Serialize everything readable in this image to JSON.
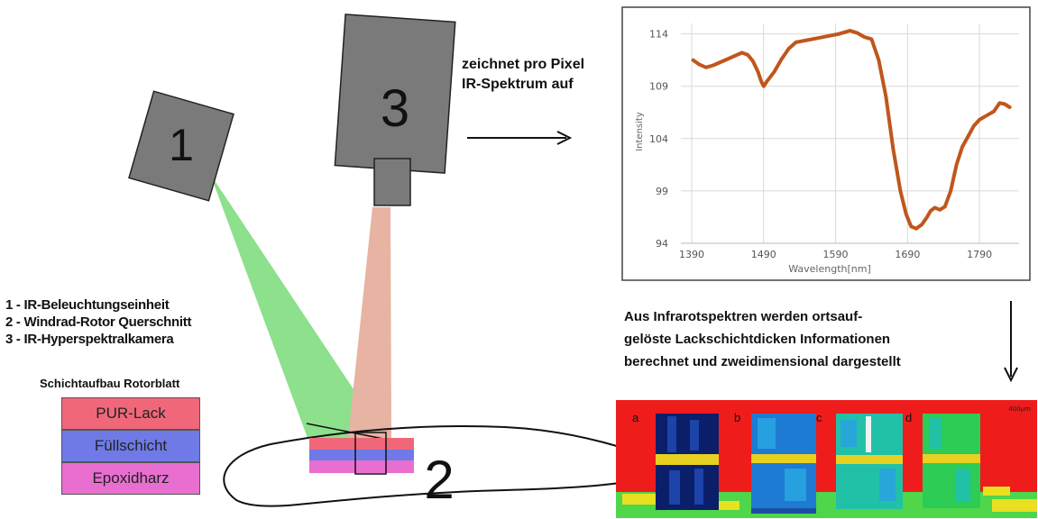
{
  "devices": {
    "illumination_number": "1",
    "blade_number": "2",
    "camera_number": "3"
  },
  "legend": {
    "line1": "1 - IR-Beleuchtungseinheit",
    "line2": "2 - Windrad-Rotor Querschnitt",
    "line3": "3 - IR-Hyperspektralkamera"
  },
  "layer_stack": {
    "title": "Schichtaufbau Rotorblatt",
    "layers": [
      {
        "label": "PUR-Lack",
        "color": "#f0677a"
      },
      {
        "label": "Füllschicht",
        "color": "#6f7ae6"
      },
      {
        "label": "Epoxidharz",
        "color": "#e86fd0"
      }
    ]
  },
  "arrow_caption": {
    "line1": "zeichnet pro Pixel",
    "line2": "IR-Spektrum auf"
  },
  "result_caption": {
    "line1": "Aus Infrarotspektren werden ortsauf-",
    "line2": "gelöste Lackschichtdicken Informationen",
    "line3": "berechnet und zweidimensional dargestellt"
  },
  "heatmap": {
    "panels": [
      "a",
      "b",
      "c",
      "d"
    ],
    "scale_label": "400µm"
  },
  "colors": {
    "illumination_beam": "#8de08c",
    "camera_beam": "#e7b3a3",
    "device_gray": "#7a7a7a",
    "spectrum_line": "#c0561c",
    "heatmap_background": "#ef1c1c"
  },
  "chart_data": {
    "type": "line",
    "xlabel": "Wavelength[nm]",
    "ylabel": "Intensity",
    "x_ticks": [
      1390,
      1490,
      1590,
      1690,
      1790
    ],
    "y_ticks": [
      94,
      99,
      104,
      109,
      114
    ],
    "xlim": [
      1375,
      1845
    ],
    "ylim": [
      94,
      115
    ],
    "grid": true,
    "series": [
      {
        "color": "#c0561c",
        "x": [
          1392,
          1400,
          1410,
          1420,
          1430,
          1440,
          1450,
          1460,
          1468,
          1475,
          1482,
          1487,
          1490,
          1495,
          1505,
          1515,
          1525,
          1535,
          1550,
          1565,
          1580,
          1595,
          1610,
          1620,
          1630,
          1640,
          1650,
          1660,
          1670,
          1680,
          1688,
          1695,
          1702,
          1710,
          1717,
          1722,
          1728,
          1735,
          1742,
          1750,
          1758,
          1766,
          1774,
          1782,
          1790,
          1800,
          1810,
          1818,
          1825,
          1832
        ],
        "y": [
          111.5,
          111.1,
          110.8,
          111.0,
          111.3,
          111.6,
          111.9,
          112.2,
          112.0,
          111.4,
          110.4,
          109.4,
          109.0,
          109.5,
          110.4,
          111.6,
          112.6,
          113.2,
          113.4,
          113.6,
          113.8,
          114.0,
          114.3,
          114.1,
          113.7,
          113.5,
          111.5,
          108.0,
          103.0,
          99.0,
          96.8,
          95.6,
          95.4,
          95.8,
          96.5,
          97.1,
          97.4,
          97.2,
          97.5,
          99.0,
          101.5,
          103.2,
          104.2,
          105.2,
          105.8,
          106.2,
          106.6,
          107.4,
          107.3,
          107.0
        ]
      }
    ]
  }
}
